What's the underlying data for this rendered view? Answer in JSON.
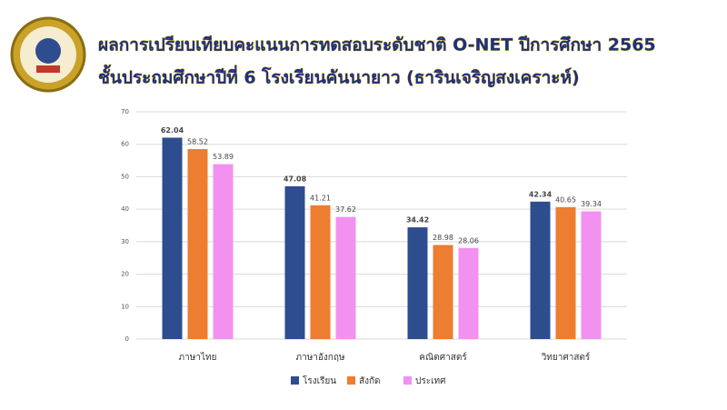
{
  "chart_data": {
    "type": "bar",
    "title": "ผลการเปรียบเทียบคะแนนการทดสอบระดับชาติ O-NET ปีการศึกษา 2565",
    "subtitle": "ชั้นประถมศึกษาปีที่ 6 โรงเรียนคันนายาว (ธารินเจริญสงเคราะห์)",
    "categories": [
      "ภาษาไทย",
      "ภาษาอังกฤษ",
      "คณิตศาสตร์",
      "วิทยาศาสตร์"
    ],
    "series": [
      {
        "name": "โรงเรียน",
        "color": "#2e4d8f",
        "values": [
          62.04,
          47.08,
          34.42,
          42.34
        ]
      },
      {
        "name": "สังกัด",
        "color": "#ed7d31",
        "values": [
          58.52,
          41.21,
          28.98,
          40.65
        ]
      },
      {
        "name": "ประเทศ",
        "color": "#f291f0",
        "values": [
          53.89,
          37.62,
          28.06,
          39.34
        ]
      }
    ],
    "ylim": [
      0,
      70
    ],
    "yticks": [
      0,
      10,
      20,
      30,
      40,
      50,
      60,
      70
    ],
    "grid": true
  }
}
